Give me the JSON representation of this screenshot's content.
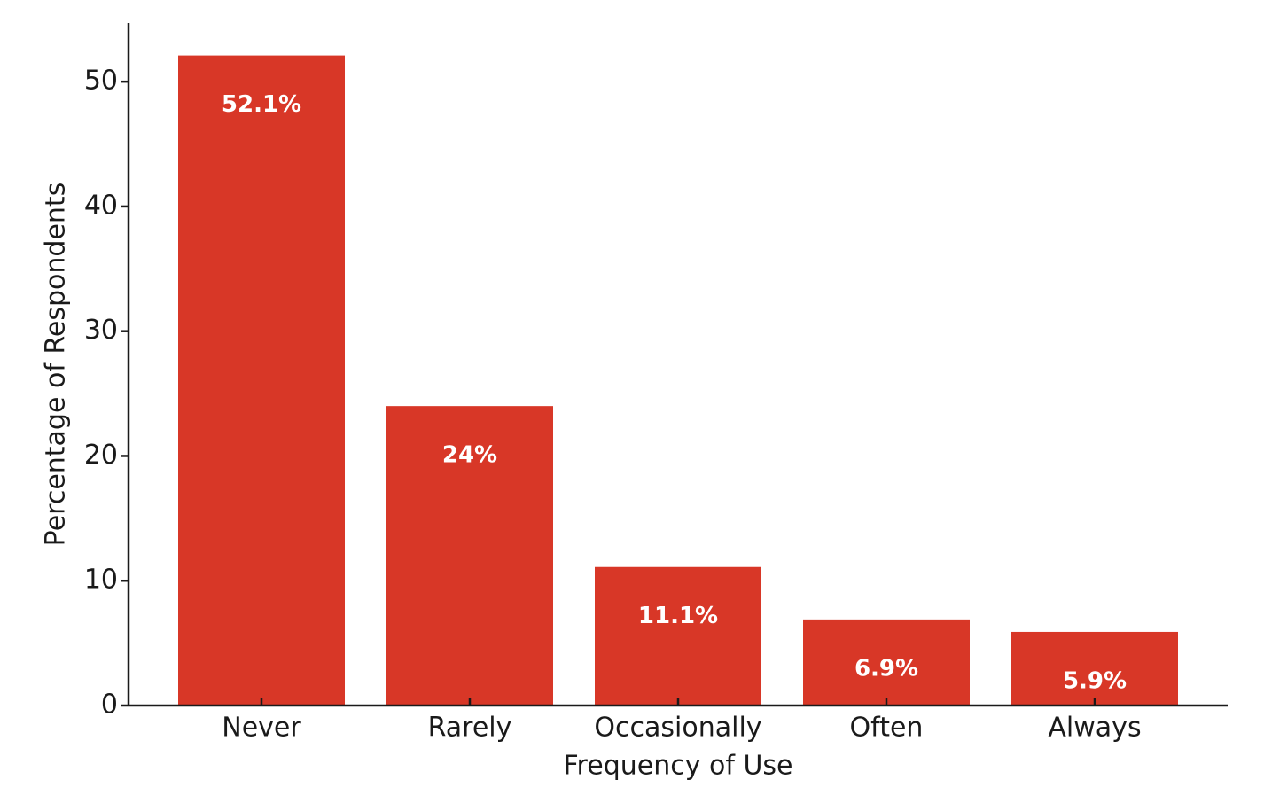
{
  "chart_data": {
    "type": "bar",
    "x_label": "Frequency of Use",
    "y_label": "Percentage of Respondents",
    "categories": [
      "Never",
      "Rarely",
      "Occasionally",
      "Often",
      "Always"
    ],
    "values": [
      52.1,
      24,
      11.1,
      6.9,
      5.9
    ],
    "value_labels": [
      "52.1%",
      "24%",
      "11.1%",
      "6.9%",
      "5.9%"
    ],
    "color": "#d83727",
    "ylim": [
      0,
      54.7
    ],
    "yticks": [
      0,
      10,
      20,
      30,
      40,
      50
    ]
  }
}
